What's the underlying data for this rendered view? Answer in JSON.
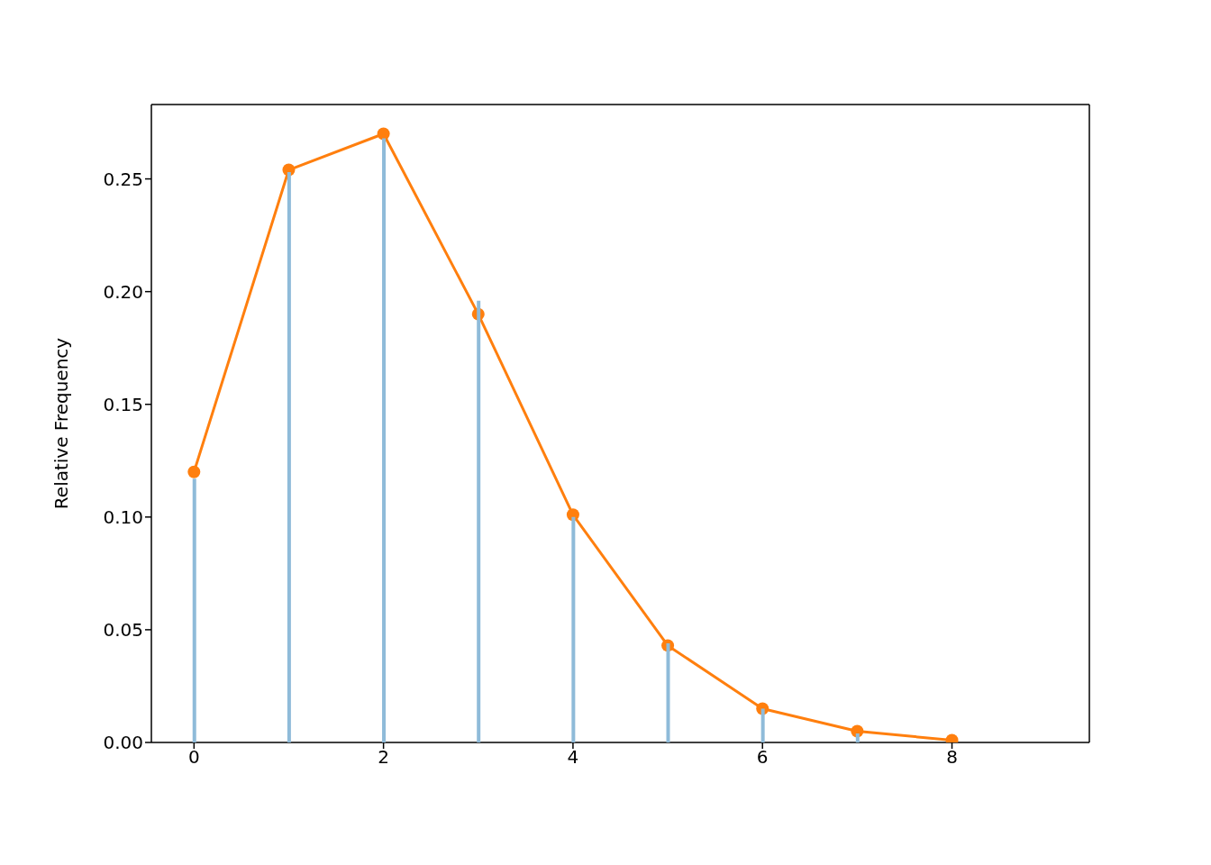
{
  "chart_data": {
    "type": "line",
    "ylabel": "Relative Frequency",
    "x": [
      0,
      1,
      2,
      3,
      4,
      5,
      6,
      7,
      8
    ],
    "series": [
      {
        "type": "bar",
        "color": "#8fbbd9",
        "values": [
          0.117,
          0.253,
          0.268,
          0.196,
          0.1,
          0.044,
          0.015,
          0.004,
          null
        ]
      },
      {
        "color": "#ff7f0e",
        "values": [
          0.12,
          0.254,
          0.27,
          0.19,
          0.101,
          0.043,
          0.015,
          0.005,
          0.001
        ]
      }
    ],
    "xlim": [
      -0.45,
      9.45
    ],
    "xticks": [
      0,
      2,
      4,
      6,
      8
    ],
    "ylim": [
      0,
      0.283
    ],
    "yticks": [
      {
        "value": 0,
        "label": "0.00"
      },
      {
        "value": 0.05,
        "label": "0.05"
      },
      {
        "value": 0.1,
        "label": "0.10"
      },
      {
        "value": 0.15,
        "label": "0.15"
      },
      {
        "value": 0.2,
        "label": "0.20"
      },
      {
        "value": 0.25,
        "label": "0.25"
      }
    ],
    "marker": "circle",
    "line_style": "solid"
  }
}
